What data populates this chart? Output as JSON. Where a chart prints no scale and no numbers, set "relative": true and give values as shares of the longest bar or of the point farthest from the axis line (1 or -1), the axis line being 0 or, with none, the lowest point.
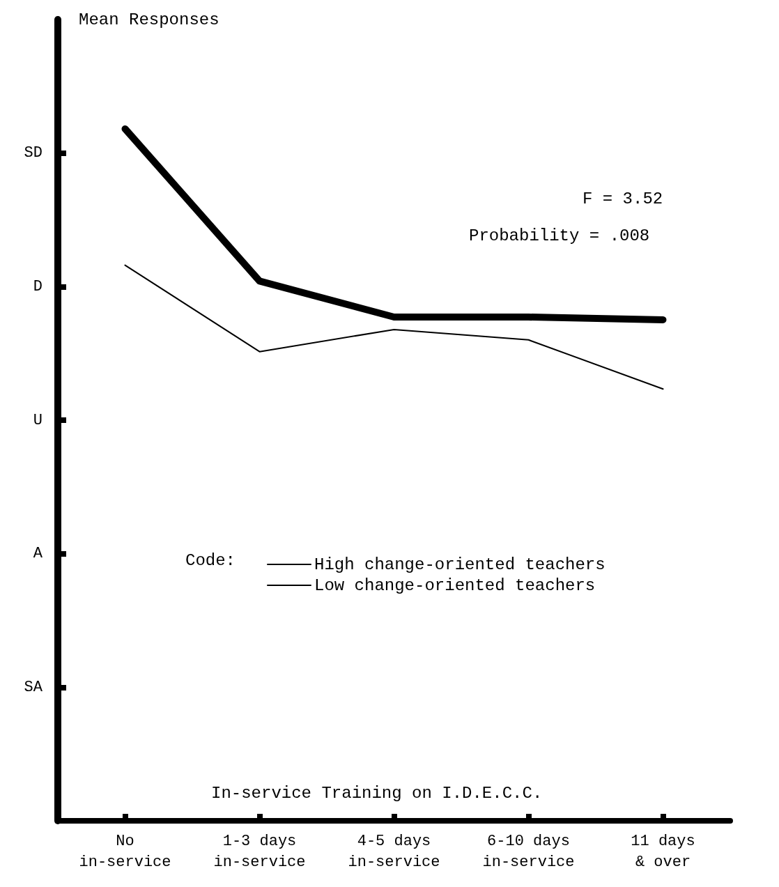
{
  "chart_data": {
    "type": "line",
    "xlabel": "In-service Training on I.D.E.C.C.",
    "legend_title": "Code:",
    "categories": [
      "No\nin-service",
      "1-3 days\nin-service",
      "4-5 days\nin-service",
      "6-10 days\nin-service",
      "11 days\n& over"
    ],
    "series": [
      {
        "name": "High change-oriented teachers",
        "color": "#000000",
        "values": [
          1,
          0.78,
          0.728,
          0.728,
          0.724
        ]
      },
      {
        "name": "Low change-oriented teachers",
        "color": "#000000",
        "values": [
          0.803,
          0.678,
          0.71,
          0.695,
          0.624
        ]
      }
    ],
    "relative": true,
    "annotations": [
      "SD",
      "D",
      "U",
      "A",
      "SA",
      "Mean Responses",
      "F = 3.52",
      "Probability = .008"
    ],
    "legend": "center",
    "grid": false,
    "marker": "none",
    "line_style": "solid"
  }
}
